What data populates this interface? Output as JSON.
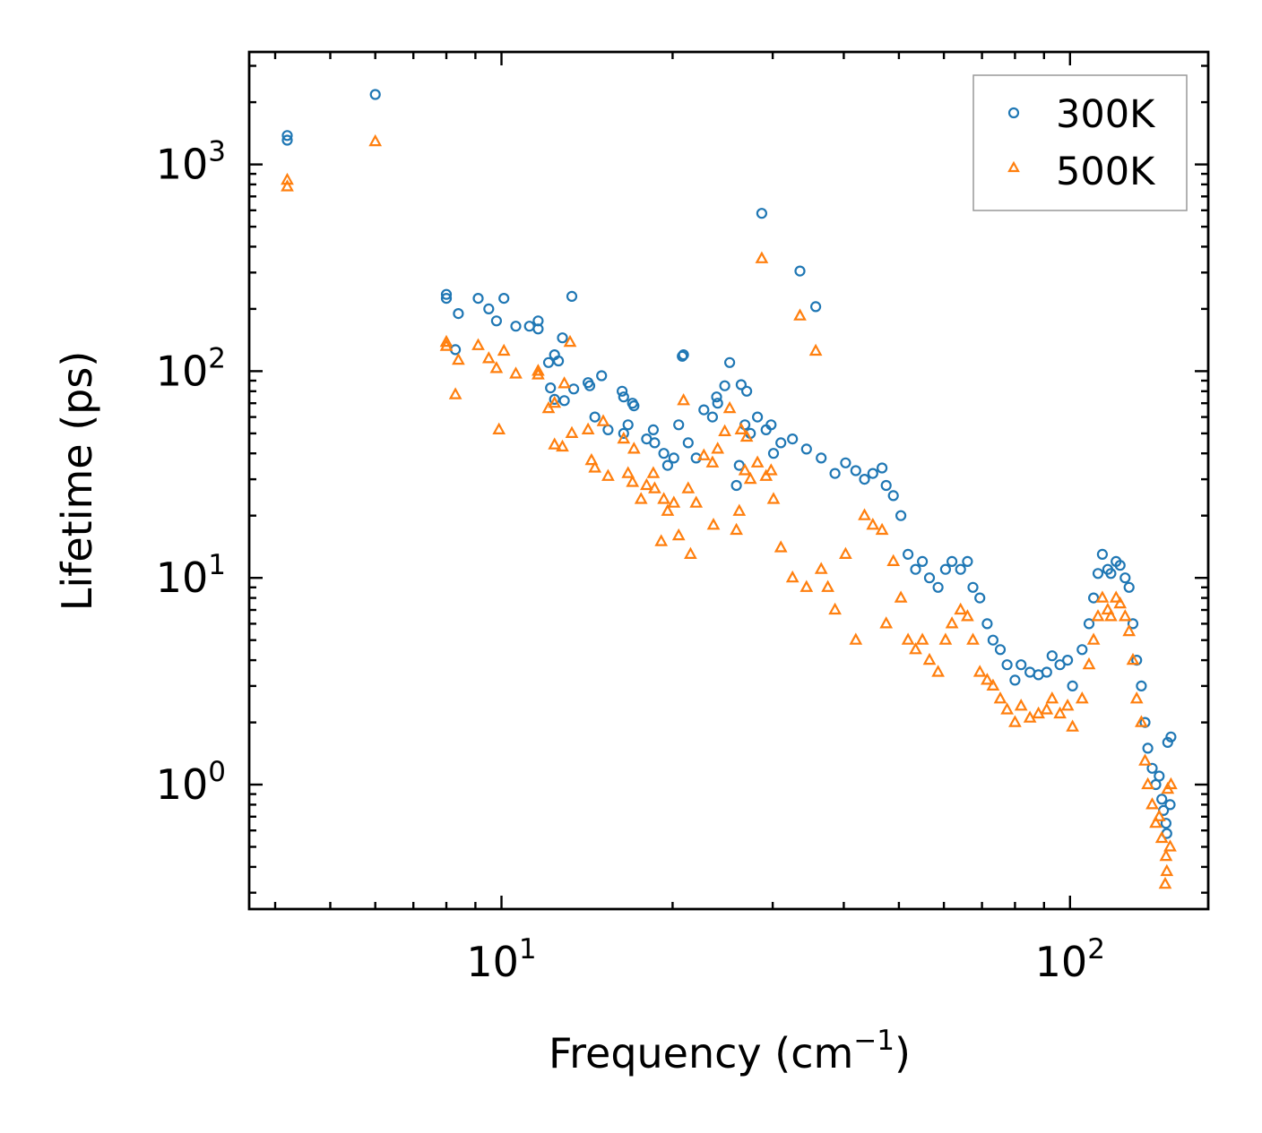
{
  "chart_data": {
    "type": "scatter",
    "xscale": "log",
    "yscale": "log",
    "xlim": [
      3.6,
      175
    ],
    "ylim": [
      0.25,
      3500
    ],
    "xlabel": "Frequency (cm",
    "xlabel_sup": "−1",
    "xlabel_end": ")",
    "ylabel": "Lifetime (ps)",
    "x_tick_labels": [
      {
        "value": 10,
        "base": "10",
        "exp": "1"
      },
      {
        "value": 100,
        "base": "10",
        "exp": "2"
      }
    ],
    "y_tick_labels": [
      {
        "value": 1,
        "base": "10",
        "exp": "0"
      },
      {
        "value": 10,
        "base": "10",
        "exp": "1"
      },
      {
        "value": 100,
        "base": "10",
        "exp": "2"
      },
      {
        "value": 1000,
        "base": "10",
        "exp": "3"
      }
    ],
    "legend_position": "top-right",
    "series": [
      {
        "name": "300K",
        "marker": "circle",
        "color": "#1f77b4",
        "points": [
          [
            4.2,
            1380
          ],
          [
            4.2,
            1310
          ],
          [
            6.0,
            2180
          ],
          [
            8.0,
            235
          ],
          [
            8.0,
            225
          ],
          [
            8.4,
            190
          ],
          [
            8.3,
            127
          ],
          [
            9.1,
            225
          ],
          [
            9.5,
            200
          ],
          [
            9.8,
            175
          ],
          [
            10.1,
            225
          ],
          [
            10.6,
            165
          ],
          [
            11.2,
            165
          ],
          [
            11.6,
            175
          ],
          [
            11.6,
            160
          ],
          [
            12.1,
            110
          ],
          [
            12.4,
            120
          ],
          [
            12.2,
            83
          ],
          [
            12.6,
            112
          ],
          [
            12.4,
            73
          ],
          [
            12.9,
            72
          ],
          [
            12.8,
            145
          ],
          [
            13.3,
            230
          ],
          [
            13.4,
            82
          ],
          [
            14.2,
            88
          ],
          [
            14.3,
            85
          ],
          [
            14.6,
            60
          ],
          [
            15.0,
            95
          ],
          [
            15.4,
            52
          ],
          [
            16.3,
            80
          ],
          [
            16.4,
            75
          ],
          [
            17.0,
            70
          ],
          [
            17.1,
            68
          ],
          [
            16.7,
            55
          ],
          [
            16.4,
            50
          ],
          [
            18.0,
            47
          ],
          [
            18.5,
            52
          ],
          [
            18.6,
            45
          ],
          [
            19.3,
            40
          ],
          [
            19.6,
            35
          ],
          [
            20.1,
            38
          ],
          [
            20.5,
            55
          ],
          [
            20.9,
            120
          ],
          [
            20.8,
            118
          ],
          [
            21.3,
            45
          ],
          [
            22.0,
            38
          ],
          [
            22.7,
            65
          ],
          [
            23.5,
            60
          ],
          [
            23.9,
            75
          ],
          [
            24.0,
            70
          ],
          [
            24.7,
            85
          ],
          [
            25.2,
            110
          ],
          [
            25.9,
            28
          ],
          [
            26.2,
            35
          ],
          [
            26.4,
            86
          ],
          [
            26.8,
            55
          ],
          [
            27.0,
            80
          ],
          [
            27.4,
            50
          ],
          [
            28.2,
            60
          ],
          [
            28.7,
            580
          ],
          [
            29.2,
            52
          ],
          [
            29.8,
            55
          ],
          [
            30.1,
            40
          ],
          [
            31.0,
            45
          ],
          [
            32.5,
            47
          ],
          [
            33.5,
            305
          ],
          [
            34.4,
            42
          ],
          [
            35.7,
            205
          ],
          [
            36.5,
            38
          ],
          [
            38.6,
            32
          ],
          [
            40.3,
            36
          ],
          [
            42.0,
            33
          ],
          [
            43.5,
            30
          ],
          [
            45.0,
            32
          ],
          [
            46.7,
            34
          ],
          [
            47.5,
            28
          ],
          [
            48.9,
            25
          ],
          [
            50.4,
            20
          ],
          [
            51.9,
            13
          ],
          [
            53.5,
            11
          ],
          [
            55.0,
            12
          ],
          [
            56.6,
            10
          ],
          [
            58.6,
            9
          ],
          [
            60.4,
            11
          ],
          [
            62.0,
            12
          ],
          [
            64.2,
            11
          ],
          [
            66.0,
            12
          ],
          [
            67.5,
            9
          ],
          [
            69.4,
            8
          ],
          [
            71.5,
            6
          ],
          [
            73.2,
            5
          ],
          [
            75.4,
            4.5
          ],
          [
            77.5,
            3.8
          ],
          [
            80.0,
            3.2
          ],
          [
            82.0,
            3.8
          ],
          [
            85.0,
            3.5
          ],
          [
            88.0,
            3.4
          ],
          [
            91.0,
            3.5
          ],
          [
            93.0,
            4.2
          ],
          [
            96.0,
            3.8
          ],
          [
            99.0,
            4.0
          ],
          [
            101.0,
            3.0
          ],
          [
            105.0,
            4.5
          ],
          [
            108.0,
            6.0
          ],
          [
            110.0,
            8.0
          ],
          [
            112.0,
            10.5
          ],
          [
            114.0,
            13
          ],
          [
            116.5,
            11
          ],
          [
            118.0,
            10.5
          ],
          [
            120.5,
            12
          ],
          [
            122.5,
            11.5
          ],
          [
            125.0,
            10
          ],
          [
            127.0,
            9
          ],
          [
            129.0,
            6
          ],
          [
            131.0,
            4
          ],
          [
            133.5,
            3
          ],
          [
            135.5,
            2.0
          ],
          [
            137.0,
            1.5
          ],
          [
            139.5,
            1.2
          ],
          [
            141.5,
            1.0
          ],
          [
            143.5,
            1.1
          ],
          [
            145.0,
            0.85
          ],
          [
            147.5,
            0.65
          ],
          [
            148.5,
            1.6
          ],
          [
            150.5,
            1.7
          ],
          [
            150.0,
            0.8
          ],
          [
            148.0,
            0.58
          ],
          [
            146.0,
            0.75
          ]
        ]
      },
      {
        "name": "500K",
        "marker": "triangle",
        "color": "#ff7f0e",
        "points": [
          [
            4.2,
            840
          ],
          [
            4.2,
            780
          ],
          [
            6.0,
            1290
          ],
          [
            8.0,
            138
          ],
          [
            8.0,
            132
          ],
          [
            8.4,
            113
          ],
          [
            8.3,
            77
          ],
          [
            9.1,
            133
          ],
          [
            9.5,
            115
          ],
          [
            9.8,
            103
          ],
          [
            9.9,
            52
          ],
          [
            10.1,
            125
          ],
          [
            10.6,
            97
          ],
          [
            11.6,
            100
          ],
          [
            11.6,
            96
          ],
          [
            12.1,
            66
          ],
          [
            12.4,
            70
          ],
          [
            12.4,
            44
          ],
          [
            12.9,
            87
          ],
          [
            12.8,
            43
          ],
          [
            13.2,
            138
          ],
          [
            13.3,
            50
          ],
          [
            14.2,
            52
          ],
          [
            14.4,
            37
          ],
          [
            14.6,
            34
          ],
          [
            15.1,
            57
          ],
          [
            15.4,
            31
          ],
          [
            16.4,
            47
          ],
          [
            16.7,
            32
          ],
          [
            17.0,
            29
          ],
          [
            17.1,
            42
          ],
          [
            17.6,
            24
          ],
          [
            18.0,
            28
          ],
          [
            18.5,
            32
          ],
          [
            18.6,
            27
          ],
          [
            19.1,
            15
          ],
          [
            19.3,
            24
          ],
          [
            19.6,
            21
          ],
          [
            20.1,
            23
          ],
          [
            20.5,
            16
          ],
          [
            20.9,
            72
          ],
          [
            21.3,
            27
          ],
          [
            21.5,
            13
          ],
          [
            22.0,
            23
          ],
          [
            22.7,
            39
          ],
          [
            23.5,
            36
          ],
          [
            23.6,
            18
          ],
          [
            24.0,
            42
          ],
          [
            24.7,
            51
          ],
          [
            25.2,
            66
          ],
          [
            25.9,
            17
          ],
          [
            26.2,
            21
          ],
          [
            26.4,
            52
          ],
          [
            26.8,
            33
          ],
          [
            27.0,
            48
          ],
          [
            27.4,
            30
          ],
          [
            28.2,
            36
          ],
          [
            28.7,
            350
          ],
          [
            29.2,
            31
          ],
          [
            29.8,
            33
          ],
          [
            30.1,
            24
          ],
          [
            31.0,
            14
          ],
          [
            32.5,
            10
          ],
          [
            33.5,
            185
          ],
          [
            34.4,
            9
          ],
          [
            35.7,
            125
          ],
          [
            36.5,
            11
          ],
          [
            37.5,
            9
          ],
          [
            38.6,
            7
          ],
          [
            40.3,
            13
          ],
          [
            42.0,
            5
          ],
          [
            43.5,
            20
          ],
          [
            45.0,
            18
          ],
          [
            46.7,
            17
          ],
          [
            47.5,
            6
          ],
          [
            48.9,
            12
          ],
          [
            50.4,
            8
          ],
          [
            51.9,
            5
          ],
          [
            53.5,
            4.5
          ],
          [
            55.0,
            5
          ],
          [
            56.6,
            4
          ],
          [
            58.6,
            3.5
          ],
          [
            60.4,
            5
          ],
          [
            62.0,
            6
          ],
          [
            64.2,
            7
          ],
          [
            66.0,
            6.5
          ],
          [
            67.5,
            5
          ],
          [
            69.4,
            3.5
          ],
          [
            71.5,
            3.2
          ],
          [
            73.2,
            3.0
          ],
          [
            75.4,
            2.6
          ],
          [
            77.5,
            2.3
          ],
          [
            80.0,
            2.0
          ],
          [
            82.0,
            2.4
          ],
          [
            85.0,
            2.1
          ],
          [
            88.0,
            2.2
          ],
          [
            91.0,
            2.3
          ],
          [
            93.0,
            2.6
          ],
          [
            96.0,
            2.2
          ],
          [
            99.0,
            2.4
          ],
          [
            101.0,
            1.9
          ],
          [
            105.0,
            2.6
          ],
          [
            108.0,
            3.8
          ],
          [
            110.0,
            5
          ],
          [
            112.0,
            6.5
          ],
          [
            114.0,
            8
          ],
          [
            116.5,
            7
          ],
          [
            118.0,
            6.5
          ],
          [
            120.5,
            8
          ],
          [
            122.5,
            7.5
          ],
          [
            125.0,
            6.5
          ],
          [
            127.0,
            5.5
          ],
          [
            129.0,
            4
          ],
          [
            131.0,
            2.6
          ],
          [
            133.5,
            2.0
          ],
          [
            135.5,
            1.3
          ],
          [
            137.0,
            1.0
          ],
          [
            139.5,
            0.8
          ],
          [
            141.5,
            0.65
          ],
          [
            143.5,
            0.7
          ],
          [
            145.0,
            0.55
          ],
          [
            147.5,
            0.45
          ],
          [
            148.5,
            0.95
          ],
          [
            150.5,
            1.0
          ],
          [
            150.0,
            0.5
          ],
          [
            148.0,
            0.38
          ],
          [
            147.0,
            0.33
          ]
        ]
      }
    ]
  }
}
